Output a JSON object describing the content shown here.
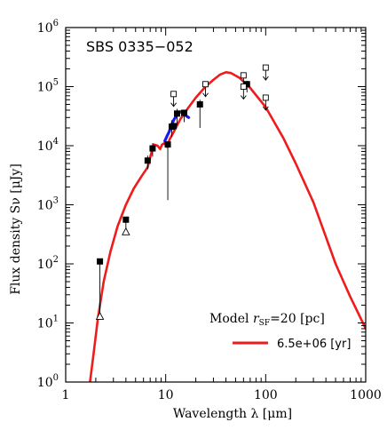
{
  "chart_data": {
    "type": "line",
    "title": "SBS 0335−052",
    "xlabel": "Wavelength λ [μm]",
    "ylabel": "Flux density Sν [μJy]",
    "xscale": "log",
    "yscale": "log",
    "xlim": [
      1,
      1000
    ],
    "ylim": [
      1,
      1000000
    ],
    "x_ticks": [
      {
        "v": 1,
        "label": "1"
      },
      {
        "v": 10,
        "label": "10"
      },
      {
        "v": 100,
        "label": "100"
      },
      {
        "v": 1000,
        "label": "1000"
      }
    ],
    "y_ticks": [
      {
        "v": 1,
        "base": "10",
        "exp": "0"
      },
      {
        "v": 10,
        "base": "10",
        "exp": "1"
      },
      {
        "v": 100,
        "base": "10",
        "exp": "2"
      },
      {
        "v": 1000,
        "base": "10",
        "exp": "3"
      },
      {
        "v": 10000,
        "base": "10",
        "exp": "4"
      },
      {
        "v": 100000,
        "base": "10",
        "exp": "5"
      },
      {
        "v": 1000000,
        "base": "10",
        "exp": "6"
      }
    ],
    "legend": {
      "title_prefix": "Model ",
      "title_var": "r",
      "title_sub": "SF",
      "title_suffix": "=20 [pc]",
      "placement": "bottom-right"
    },
    "series": [
      {
        "name": "6.5e+06 [yr]",
        "color": "#ee1c1c",
        "x": [
          1.75,
          1.9,
          2.1,
          2.4,
          2.8,
          3.3,
          4.0,
          4.8,
          5.7,
          6.6,
          7.1,
          7.6,
          8.3,
          8.8,
          9.2,
          9.7,
          10.3,
          11.0,
          12.0,
          14.0,
          17.0,
          20.0,
          25.0,
          30.0,
          35.0,
          40.0,
          45.0,
          55.0,
          70.0,
          100.0,
          150.0,
          200.0,
          300.0,
          500.0,
          700.0,
          1000.0
        ],
        "y": [
          1.0,
          3.0,
          12.0,
          50.0,
          160.0,
          430.0,
          1000.0,
          1900.0,
          3000.0,
          4300.0,
          7000.0,
          10500.0,
          10000.0,
          8800.0,
          10500.0,
          11000.0,
          9600.0,
          13000.0,
          17000.0,
          28000.0,
          45000.0,
          65000.0,
          100000.0,
          130000.0,
          160000.0,
          175000.0,
          170000.0,
          140000.0,
          95000.0,
          45000.0,
          13500.0,
          5000.0,
          1100.0,
          100.0,
          28.0,
          8.0
        ]
      },
      {
        "name": "",
        "color": "#1a1aee",
        "x": [
          9.8,
          10.3,
          10.8,
          11.4,
          12.0,
          12.8,
          13.6,
          14.4,
          15.2,
          16.0,
          17.0
        ],
        "y": [
          12000.0,
          14500.0,
          17000.0,
          22000.0,
          27000.0,
          32000.0,
          36000.0,
          38000.0,
          36000.0,
          32000.0,
          30000.0
        ]
      }
    ],
    "detections": [
      {
        "x": 2.2,
        "y": 110,
        "lo": 13
      },
      {
        "x": 4.0,
        "y": 560,
        "lo": 350
      },
      {
        "x": 6.6,
        "y": 5600,
        "lo": 4000,
        "hi": 6800
      },
      {
        "x": 7.4,
        "y": 9000,
        "lo": 6500,
        "hi": 11000
      },
      {
        "x": 10.5,
        "y": 10500,
        "lo": 1200,
        "hi": 12000
      },
      {
        "x": 11.5,
        "y": 21000,
        "lo": 14000,
        "hi": 27000
      },
      {
        "x": 12.0,
        "y": 21500
      },
      {
        "x": 13.0,
        "y": 35000,
        "lo": 22000,
        "hi": 42000
      },
      {
        "x": 15.3,
        "y": 36000,
        "lo": 25000
      },
      {
        "x": 22.0,
        "y": 50000,
        "lo": 20000,
        "hi": 60000
      },
      {
        "x": 65.0,
        "y": 110000,
        "lo": 80000,
        "hi": 125000
      }
    ],
    "open_triangles": [
      {
        "x": 2.2,
        "y": 13
      },
      {
        "x": 4.0,
        "y": 350
      }
    ],
    "upper_limits": [
      {
        "x": 12.0,
        "y": 75000
      },
      {
        "x": 25.0,
        "y": 110000
      },
      {
        "x": 60.0,
        "y": 155000
      },
      {
        "x": 60.0,
        "y": 100000
      },
      {
        "x": 100.0,
        "y": 210000
      },
      {
        "x": 100.0,
        "y": 65000
      }
    ]
  }
}
